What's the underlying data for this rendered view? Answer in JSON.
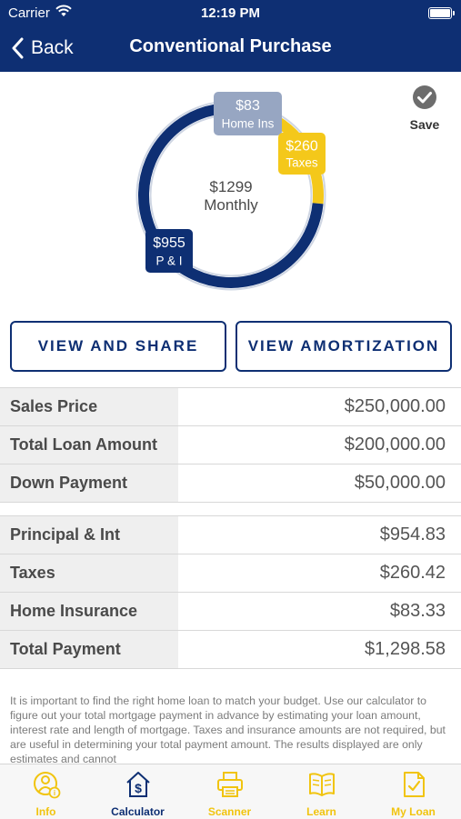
{
  "status_bar": {
    "carrier": "Carrier",
    "time": "12:19 PM"
  },
  "nav": {
    "back_label": "Back",
    "title": "Conventional Purchase"
  },
  "save": {
    "label": "Save"
  },
  "chart_data": {
    "type": "pie",
    "center_value": "$1299",
    "center_label": "Monthly",
    "slices": [
      {
        "name": "P & I",
        "label_value": "$955",
        "value": 954.83,
        "color": "#0e2f73"
      },
      {
        "name": "Taxes",
        "label_value": "$260",
        "value": 260.42,
        "color": "#f4c81a"
      },
      {
        "name": "Home Ins",
        "label_value": "$83",
        "value": 83.33,
        "color": "#97a6c2"
      }
    ]
  },
  "buttons": {
    "view_share": "VIEW AND SHARE",
    "view_amortization": "VIEW AMORTIZATION"
  },
  "loan_rows": [
    {
      "label": "Sales Price",
      "value": "$250,000.00"
    },
    {
      "label": "Total Loan Amount",
      "value": "$200,000.00"
    },
    {
      "label": "Down Payment",
      "value": "$50,000.00"
    }
  ],
  "payment_rows": [
    {
      "label": "Principal & Int",
      "value": "$954.83"
    },
    {
      "label": "Taxes",
      "value": "$260.42"
    },
    {
      "label": "Home Insurance",
      "value": "$83.33"
    },
    {
      "label": "Total Payment",
      "value": "$1,298.58"
    }
  ],
  "disclaimer": "It is important to find the right home loan to match your budget. Use our calculator to figure out your total mortgage payment in advance by estimating your loan amount, interest rate and length of mortgage. Taxes and insurance amounts are not required, but are useful in determining your total payment amount.  The results displayed are only estimates and cannot",
  "tabs": [
    {
      "label": "Info",
      "icon": "info-person-icon"
    },
    {
      "label": "Calculator",
      "icon": "calculator-house-icon"
    },
    {
      "label": "Scanner",
      "icon": "scanner-icon"
    },
    {
      "label": "Learn",
      "icon": "book-icon"
    },
    {
      "label": "My Loan",
      "icon": "document-check-icon"
    }
  ]
}
